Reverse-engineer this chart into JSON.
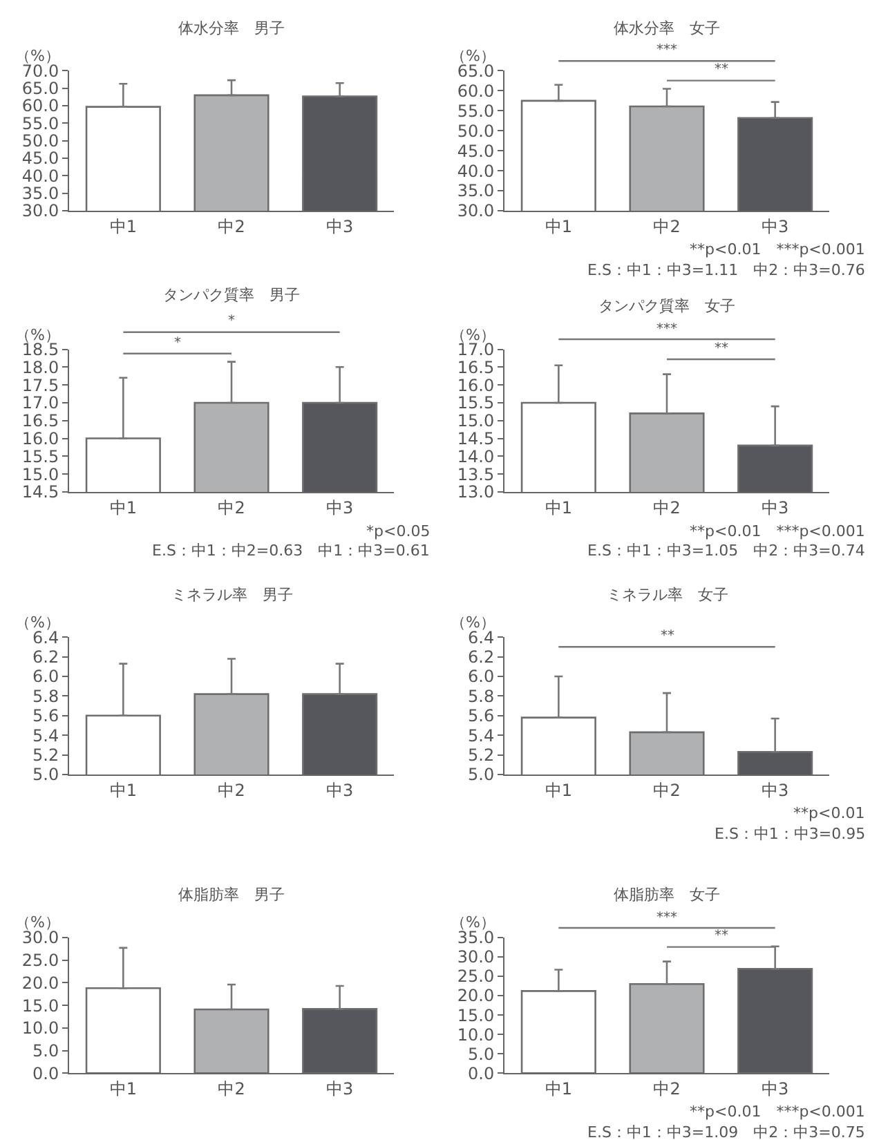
{
  "chart_data": [
    {
      "type": "bar",
      "title": "体水分率　男子",
      "ylabel": "（%）",
      "categories": [
        "中1",
        "中2",
        "中3"
      ],
      "values": [
        59.7,
        63.0,
        62.7
      ],
      "colors": [
        "#ffffff",
        "#b0b1b3",
        "#55575c"
      ],
      "errors": [
        [
          59.7,
          66.3
        ],
        [
          63.0,
          67.3
        ],
        [
          62.7,
          66.5
        ]
      ],
      "ylim": [
        30,
        70
      ],
      "yticks": [
        {
          "value": 30,
          "label": "30.0"
        },
        {
          "value": 35,
          "label": "35.0"
        },
        {
          "value": 40,
          "label": "40.0"
        },
        {
          "value": 45,
          "label": "45.0"
        },
        {
          "value": 50,
          "label": "50.0"
        },
        {
          "value": 55,
          "label": "55.0"
        },
        {
          "value": 60,
          "label": "60.0"
        },
        {
          "value": 65,
          "label": "65.0"
        },
        {
          "value": 70,
          "label": "70.0"
        }
      ],
      "grid": false,
      "legend": false
    },
    {
      "type": "bar",
      "title": "体水分率　女子",
      "ylabel": "（%）",
      "categories": [
        "中1",
        "中2",
        "中3"
      ],
      "values": [
        57.5,
        56.1,
        53.2
      ],
      "colors": [
        "#ffffff",
        "#b0b1b3",
        "#55575c"
      ],
      "errors": [
        [
          57.5,
          61.5
        ],
        [
          56.1,
          60.5
        ],
        [
          53.2,
          57.2
        ]
      ],
      "ylim": [
        30,
        65
      ],
      "yticks": [
        {
          "value": 30,
          "label": "30.0"
        },
        {
          "value": 35,
          "label": "35.0"
        },
        {
          "value": 40,
          "label": "40.0"
        },
        {
          "value": 45,
          "label": "45.0"
        },
        {
          "value": 50,
          "label": "50.0"
        },
        {
          "value": 55,
          "label": "55.0"
        },
        {
          "value": 60,
          "label": "60.0"
        },
        {
          "value": 65,
          "label": "65.0"
        }
      ],
      "annotations": [
        "***",
        "**",
        "**p<0.01　***p<0.001",
        "E.S：中1：中3=1.11　中2：中3=0.76"
      ],
      "grid": false,
      "legend": false
    },
    {
      "type": "bar",
      "title": "タンパク質率　男子",
      "ylabel": "（%）",
      "categories": [
        "中1",
        "中2",
        "中3"
      ],
      "values": [
        16.0,
        17.0,
        17.0
      ],
      "colors": [
        "#ffffff",
        "#b0b1b3",
        "#55575c"
      ],
      "errors": [
        [
          16.0,
          17.7
        ],
        [
          17.0,
          18.15
        ],
        [
          17.0,
          18.0
        ]
      ],
      "ylim": [
        14.5,
        18.5
      ],
      "yticks": [
        {
          "value": 14.5,
          "label": "14.5"
        },
        {
          "value": 15,
          "label": "15.0"
        },
        {
          "value": 15.5,
          "label": "15.5"
        },
        {
          "value": 16,
          "label": "16.0"
        },
        {
          "value": 16.5,
          "label": "16.5"
        },
        {
          "value": 17,
          "label": "17.0"
        },
        {
          "value": 17.5,
          "label": "17.5"
        },
        {
          "value": 18,
          "label": "18.0"
        },
        {
          "value": 18.5,
          "label": "18.5"
        }
      ],
      "annotations": [
        "*",
        "*",
        "*p<0.05",
        "E.S：中1：中2=0.63　中1：中3=0.61"
      ],
      "grid": false,
      "legend": false
    },
    {
      "type": "bar",
      "title": "タンパク質率　女子",
      "ylabel": "（%）",
      "categories": [
        "中1",
        "中2",
        "中3"
      ],
      "values": [
        15.5,
        15.2,
        14.3
      ],
      "colors": [
        "#ffffff",
        "#b0b1b3",
        "#55575c"
      ],
      "errors": [
        [
          15.5,
          16.55
        ],
        [
          15.2,
          16.3
        ],
        [
          14.3,
          15.4
        ]
      ],
      "ylim": [
        13,
        17
      ],
      "yticks": [
        {
          "value": 13,
          "label": "13.0"
        },
        {
          "value": 13.5,
          "label": "13.5"
        },
        {
          "value": 14,
          "label": "14.0"
        },
        {
          "value": 14.5,
          "label": "14.5"
        },
        {
          "value": 15,
          "label": "15.0"
        },
        {
          "value": 15.5,
          "label": "15.5"
        },
        {
          "value": 16,
          "label": "16.0"
        },
        {
          "value": 16.5,
          "label": "16.5"
        },
        {
          "value": 17,
          "label": "17.0"
        }
      ],
      "annotations": [
        "***",
        "**",
        "**p<0.01　***p<0.001",
        "E.S：中1：中3=1.05　中2：中3=0.74"
      ],
      "grid": false,
      "legend": false
    },
    {
      "type": "bar",
      "title": "ミネラル率　男子",
      "ylabel": "（%）",
      "categories": [
        "中1",
        "中2",
        "中3"
      ],
      "values": [
        5.6,
        5.82,
        5.82
      ],
      "colors": [
        "#ffffff",
        "#b0b1b3",
        "#55575c"
      ],
      "errors": [
        [
          5.6,
          6.13
        ],
        [
          5.82,
          6.18
        ],
        [
          5.82,
          6.13
        ]
      ],
      "ylim": [
        5.0,
        6.4
      ],
      "yticks": [
        {
          "value": 5.0,
          "label": "5.0"
        },
        {
          "value": 5.2,
          "label": "5.2"
        },
        {
          "value": 5.4,
          "label": "5.4"
        },
        {
          "value": 5.6,
          "label": "5.6"
        },
        {
          "value": 5.8,
          "label": "5.8"
        },
        {
          "value": 6.0,
          "label": "6.0"
        },
        {
          "value": 6.2,
          "label": "6.2"
        },
        {
          "value": 6.4,
          "label": "6.4"
        }
      ],
      "grid": false,
      "legend": false
    },
    {
      "type": "bar",
      "title": "ミネラル率　女子",
      "ylabel": "（%）",
      "categories": [
        "中1",
        "中2",
        "中3"
      ],
      "values": [
        5.58,
        5.43,
        5.23
      ],
      "colors": [
        "#ffffff",
        "#b0b1b3",
        "#55575c"
      ],
      "errors": [
        [
          5.58,
          6.0
        ],
        [
          5.43,
          5.83
        ],
        [
          5.23,
          5.57
        ]
      ],
      "ylim": [
        5.0,
        6.4
      ],
      "yticks": [
        {
          "value": 5.0,
          "label": "5.0"
        },
        {
          "value": 5.2,
          "label": "5.2"
        },
        {
          "value": 5.4,
          "label": "5.4"
        },
        {
          "value": 5.6,
          "label": "5.6"
        },
        {
          "value": 5.8,
          "label": "5.8"
        },
        {
          "value": 6.0,
          "label": "6.0"
        },
        {
          "value": 6.2,
          "label": "6.2"
        },
        {
          "value": 6.4,
          "label": "6.4"
        }
      ],
      "annotations": [
        "**",
        "**p<0.01",
        "E.S：中1：中3=0.95"
      ],
      "grid": false,
      "legend": false
    },
    {
      "type": "bar",
      "title": "体脂肪率　男子",
      "ylabel": "（%）",
      "categories": [
        "中1",
        "中2",
        "中3"
      ],
      "values": [
        18.8,
        14.1,
        14.2
      ],
      "colors": [
        "#ffffff",
        "#b0b1b3",
        "#55575c"
      ],
      "errors": [
        [
          18.8,
          27.7
        ],
        [
          14.1,
          19.6
        ],
        [
          14.2,
          19.3
        ]
      ],
      "ylim": [
        0,
        30
      ],
      "yticks": [
        {
          "value": 0,
          "label": "0.0"
        },
        {
          "value": 5,
          "label": "5.0"
        },
        {
          "value": 10,
          "label": "10.0"
        },
        {
          "value": 15,
          "label": "15.0"
        },
        {
          "value": 20,
          "label": "20.0"
        },
        {
          "value": 25,
          "label": "25.0"
        },
        {
          "value": 30,
          "label": "30.0"
        }
      ],
      "grid": false,
      "legend": false
    },
    {
      "type": "bar",
      "title": "体脂肪率　女子",
      "ylabel": "（%）",
      "categories": [
        "中1",
        "中2",
        "中3"
      ],
      "values": [
        21.2,
        23.0,
        26.9
      ],
      "colors": [
        "#ffffff",
        "#b0b1b3",
        "#55575c"
      ],
      "errors": [
        [
          21.2,
          26.7
        ],
        [
          23.0,
          28.8
        ],
        [
          26.9,
          32.7
        ]
      ],
      "ylim": [
        0,
        35
      ],
      "yticks": [
        {
          "value": 0,
          "label": "0.0"
        },
        {
          "value": 5,
          "label": "5.0"
        },
        {
          "value": 10,
          "label": "10.0"
        },
        {
          "value": 15,
          "label": "15.0"
        },
        {
          "value": 20,
          "label": "20.0"
        },
        {
          "value": 25,
          "label": "25.0"
        },
        {
          "value": 30,
          "label": "30.0"
        },
        {
          "value": 35,
          "label": "35.0"
        }
      ],
      "annotations": [
        "***",
        "**",
        "**p<0.01　***p<0.001",
        "E.S：中1：中3=1.09　中2：中3=0.75"
      ],
      "grid": false,
      "legend": false
    }
  ]
}
